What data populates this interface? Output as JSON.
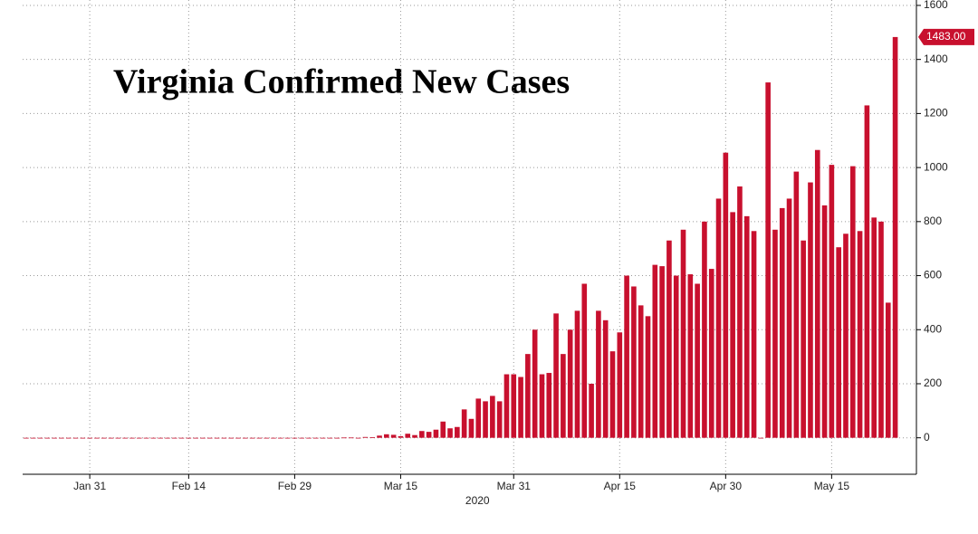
{
  "chart_data": {
    "type": "bar",
    "title": "Virginia Confirmed New Cases",
    "x_axis_label": "2020",
    "x": [
      "2020-01-22",
      "2020-01-23",
      "2020-01-24",
      "2020-01-25",
      "2020-01-26",
      "2020-01-27",
      "2020-01-28",
      "2020-01-29",
      "2020-01-30",
      "2020-01-31",
      "2020-02-01",
      "2020-02-02",
      "2020-02-03",
      "2020-02-04",
      "2020-02-05",
      "2020-02-06",
      "2020-02-07",
      "2020-02-08",
      "2020-02-09",
      "2020-02-10",
      "2020-02-11",
      "2020-02-12",
      "2020-02-13",
      "2020-02-14",
      "2020-02-15",
      "2020-02-16",
      "2020-02-17",
      "2020-02-18",
      "2020-02-19",
      "2020-02-20",
      "2020-02-21",
      "2020-02-22",
      "2020-02-23",
      "2020-02-24",
      "2020-02-25",
      "2020-02-26",
      "2020-02-27",
      "2020-02-28",
      "2020-02-29",
      "2020-03-01",
      "2020-03-02",
      "2020-03-03",
      "2020-03-04",
      "2020-03-05",
      "2020-03-06",
      "2020-03-07",
      "2020-03-08",
      "2020-03-09",
      "2020-03-10",
      "2020-03-11",
      "2020-03-12",
      "2020-03-13",
      "2020-03-14",
      "2020-03-15",
      "2020-03-16",
      "2020-03-17",
      "2020-03-18",
      "2020-03-19",
      "2020-03-20",
      "2020-03-21",
      "2020-03-22",
      "2020-03-23",
      "2020-03-24",
      "2020-03-25",
      "2020-03-26",
      "2020-03-27",
      "2020-03-28",
      "2020-03-29",
      "2020-03-30",
      "2020-03-31",
      "2020-04-01",
      "2020-04-02",
      "2020-04-03",
      "2020-04-04",
      "2020-04-05",
      "2020-04-06",
      "2020-04-07",
      "2020-04-08",
      "2020-04-09",
      "2020-04-10",
      "2020-04-11",
      "2020-04-12",
      "2020-04-13",
      "2020-04-14",
      "2020-04-15",
      "2020-04-16",
      "2020-04-17",
      "2020-04-18",
      "2020-04-19",
      "2020-04-20",
      "2020-04-21",
      "2020-04-22",
      "2020-04-23",
      "2020-04-24",
      "2020-04-25",
      "2020-04-26",
      "2020-04-27",
      "2020-04-28",
      "2020-04-29",
      "2020-04-30",
      "2020-05-01",
      "2020-05-02",
      "2020-05-03",
      "2020-05-04",
      "2020-05-05",
      "2020-05-06",
      "2020-05-07",
      "2020-05-08",
      "2020-05-09",
      "2020-05-10",
      "2020-05-11",
      "2020-05-12",
      "2020-05-13",
      "2020-05-14",
      "2020-05-15",
      "2020-05-16",
      "2020-05-17",
      "2020-05-18",
      "2020-05-19",
      "2020-05-20",
      "2020-05-21",
      "2020-05-22",
      "2020-05-23",
      "2020-05-24"
    ],
    "values": [
      0,
      0,
      0,
      0,
      0,
      0,
      0,
      0,
      0,
      0,
      0,
      0,
      0,
      0,
      0,
      0,
      0,
      0,
      0,
      0,
      0,
      0,
      0,
      0,
      0,
      0,
      0,
      0,
      0,
      0,
      0,
      0,
      0,
      0,
      0,
      0,
      0,
      0,
      0,
      0,
      0,
      0,
      0,
      0,
      0,
      1,
      1,
      0,
      3,
      2,
      8,
      13,
      11,
      6,
      15,
      10,
      25,
      22,
      30,
      60,
      35,
      40,
      105,
      70,
      145,
      135,
      155,
      135,
      235,
      235,
      225,
      310,
      400,
      235,
      240,
      460,
      310,
      400,
      470,
      570,
      200,
      470,
      435,
      320,
      390,
      600,
      560,
      490,
      450,
      640,
      635,
      730,
      600,
      770,
      605,
      570,
      800,
      625,
      885,
      1055,
      835,
      930,
      820,
      765,
      0,
      1315,
      770,
      850,
      885,
      985,
      730,
      945,
      1065,
      860,
      1010,
      705,
      755,
      1005,
      765,
      1230,
      815,
      800,
      500,
      1483
    ],
    "color": "#c8102e",
    "xlim": [
      "2020-01-22",
      "2020-05-27"
    ],
    "xticks": [
      {
        "value": "2020-01-31",
        "label": "Jan 31"
      },
      {
        "value": "2020-02-14",
        "label": "Feb 14"
      },
      {
        "value": "2020-02-29",
        "label": "Feb 29"
      },
      {
        "value": "2020-03-15",
        "label": "Mar 15"
      },
      {
        "value": "2020-03-31",
        "label": "Mar 31"
      },
      {
        "value": "2020-04-15",
        "label": "Apr 15"
      },
      {
        "value": "2020-04-30",
        "label": "Apr 30"
      },
      {
        "value": "2020-05-15",
        "label": "May 15"
      }
    ],
    "ylim": [
      -135,
      1620
    ],
    "yticks": [
      0,
      200,
      400,
      600,
      800,
      1000,
      1200,
      1400,
      1600
    ],
    "grid": true,
    "annotations": [
      {
        "label": "1483.00",
        "value": 1483
      }
    ]
  }
}
